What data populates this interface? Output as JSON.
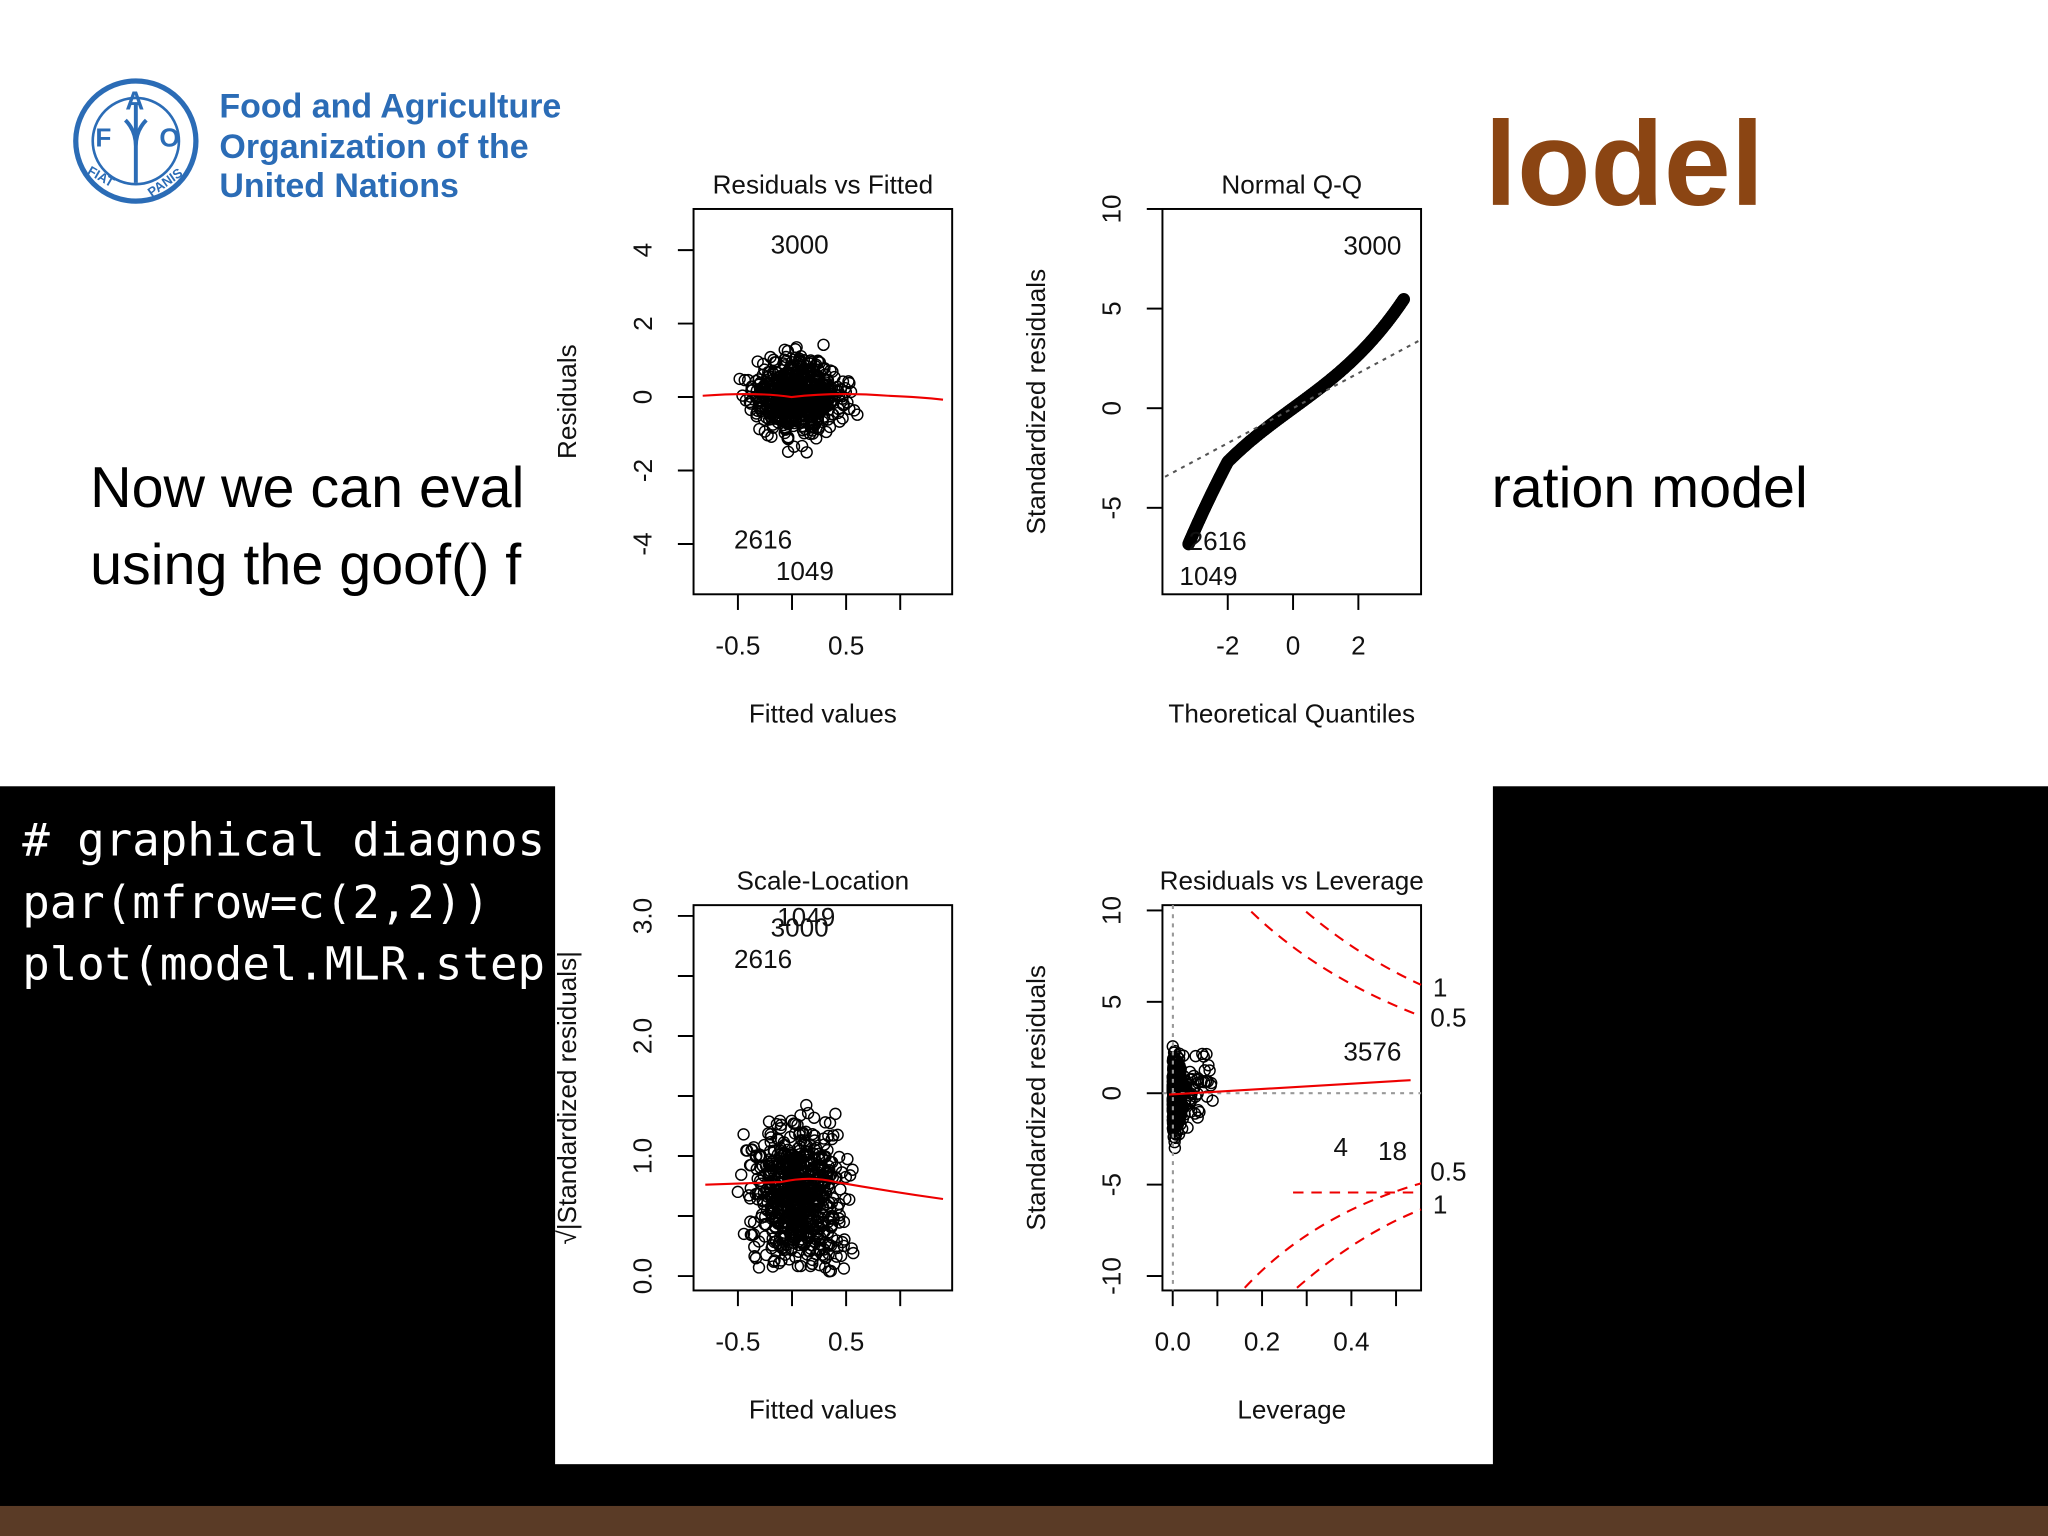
{
  "logo": {
    "emblem": [
      "F",
      "A",
      "O",
      "FIAT",
      "PANIS"
    ],
    "lines": [
      "Food and Agriculture",
      "Organization of the",
      "United Nations"
    ]
  },
  "title": "lodel",
  "body": {
    "line1_left": "Now we can eval",
    "line1_right": "ration model",
    "line2_left": "using the goof() f"
  },
  "code": [
    "# graphical diagnos",
    "par(mfrow=c(2,2))",
    "plot(model.MLR.step"
  ],
  "plots": [
    {
      "title": "Residuals vs Fitted",
      "xlabel": "Fitted values",
      "ylabel": "Residuals",
      "xlim": [
        -0.91,
        1.48
      ],
      "xticks": [
        -0.5,
        0.5
      ],
      "xminor": [
        0,
        1
      ],
      "ylim": [
        -5.37,
        5.12
      ],
      "yticks": [
        -4,
        -2,
        0,
        2,
        4
      ],
      "labels": [
        "3000",
        "2616",
        "1049"
      ]
    },
    {
      "title": "Normal Q-Q",
      "xlabel": "Theoretical Quantiles",
      "ylabel": "Standardized residuals",
      "xlim": [
        -4,
        3.92
      ],
      "xticks": [
        -2,
        0,
        2
      ],
      "xminor": [],
      "ylim": [
        -9.34,
        10
      ],
      "yticks": [
        -5,
        0,
        5,
        10
      ],
      "labels": [
        "3000",
        "2616",
        "1049"
      ]
    },
    {
      "title": "Scale-Location",
      "xlabel": "Fitted values",
      "ylabel": "√|Standardized residuals|",
      "xlim": [
        -0.91,
        1.48
      ],
      "xticks": [
        -0.5,
        0.5
      ],
      "xminor": [
        0,
        1
      ],
      "ylim": [
        -0.12,
        3.09
      ],
      "yticks": [
        {
          "value": 0,
          "label": "0.0"
        },
        {
          "value": 1,
          "label": "1.0"
        },
        {
          "value": 2,
          "label": "2.0"
        },
        {
          "value": 3,
          "label": "3.0"
        }
      ],
      "yminor": [
        0.5,
        1.5,
        2.5
      ],
      "labels": [
        "1049",
        "3000",
        "2616"
      ]
    },
    {
      "title": "Residuals vs Leverage",
      "xlabel": "Leverage",
      "ylabel": "Standardized residuals",
      "xlim": [
        -0.023,
        0.556
      ],
      "xticks": [
        {
          "value": 0,
          "label": "0.0"
        },
        0.2,
        0.4
      ],
      "xminor": [
        0.1,
        0.3,
        0.5
      ],
      "ylim": [
        -10.79,
        10.29
      ],
      "yticks": [
        -10,
        -5,
        0,
        5,
        10
      ],
      "labels": [
        "3576",
        "4",
        "18",
        "1",
        "0.5",
        "0.5",
        "1"
      ]
    }
  ]
}
